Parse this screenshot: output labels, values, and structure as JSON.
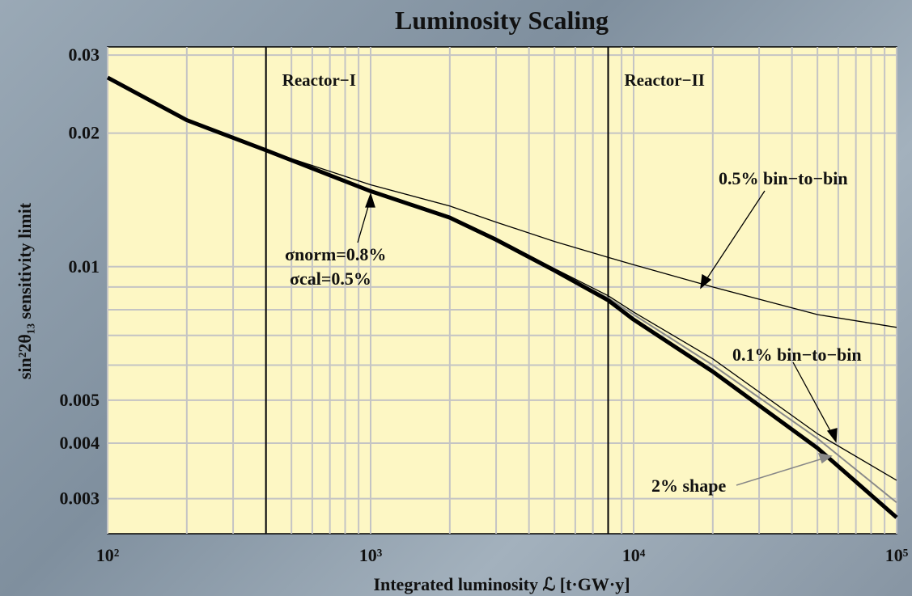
{
  "chart_data": {
    "type": "line",
    "title": "Luminosity Scaling",
    "x_label": "Integrated luminosity ℒ [t·GW·y]",
    "y_label": "sin²2θ₁₃ sensitivity limit",
    "log_x": true,
    "log_y": true,
    "grid": true,
    "xlim": [
      100,
      100000
    ],
    "ylim": [
      0.0025,
      0.0313
    ],
    "xticks": [
      {
        "value": 100,
        "label": "10²"
      },
      {
        "value": 1000,
        "label": "10³"
      },
      {
        "value": 10000,
        "label": "10⁴"
      },
      {
        "value": 100000,
        "label": "10⁵"
      }
    ],
    "yticks": [
      0.003,
      0.004,
      0.005,
      0.01,
      0.02,
      0.03
    ],
    "xminor_ticks": [
      200,
      300,
      400,
      500,
      600,
      700,
      800,
      900,
      2000,
      3000,
      4000,
      5000,
      6000,
      7000,
      8000,
      9000,
      20000,
      30000,
      40000,
      50000,
      60000,
      70000,
      80000,
      90000
    ],
    "yminor_ticks": [
      0.006,
      0.007,
      0.008,
      0.009
    ],
    "x": [
      100,
      200,
      400,
      1000,
      2000,
      3000,
      5000,
      8000,
      10000,
      20000,
      50000,
      100000
    ],
    "series": [
      {
        "color": "#000000",
        "width": 5,
        "values": [
          0.0267,
          0.0214,
          0.0183,
          0.0148,
          0.0129,
          0.0115,
          0.0098,
          0.0084,
          0.0076,
          0.0058,
          0.0039,
          0.00272
        ]
      },
      {
        "name": "0.5% bin−to−bin",
        "color": "#000000",
        "width": 1.3,
        "values": [
          0.0267,
          0.0214,
          0.0183,
          0.0153,
          0.0137,
          0.0126,
          0.0114,
          0.0105,
          0.0101,
          0.009,
          0.0078,
          0.0073
        ]
      },
      {
        "name": "0.1% bin−to−bin",
        "color": "#000000",
        "width": 1.3,
        "values": [
          0.0267,
          0.0214,
          0.0183,
          0.0149,
          0.013,
          0.0116,
          0.0099,
          0.0086,
          0.0079,
          0.0062,
          0.0042,
          0.0033
        ]
      },
      {
        "name": "2% shape",
        "color": "#8a8a8a",
        "width": 2,
        "values": [
          0.0267,
          0.0214,
          0.0183,
          0.0148,
          0.0129,
          0.0115,
          0.0098,
          0.0085,
          0.0078,
          0.006,
          0.0041,
          0.00294
        ]
      }
    ],
    "vlines": [
      {
        "x": 400,
        "label": "Reactor−I"
      },
      {
        "x": 8000,
        "label": "Reactor−II"
      }
    ],
    "annotations": [
      "σnorm=0.8%",
      "σcal=0.5%"
    ]
  }
}
